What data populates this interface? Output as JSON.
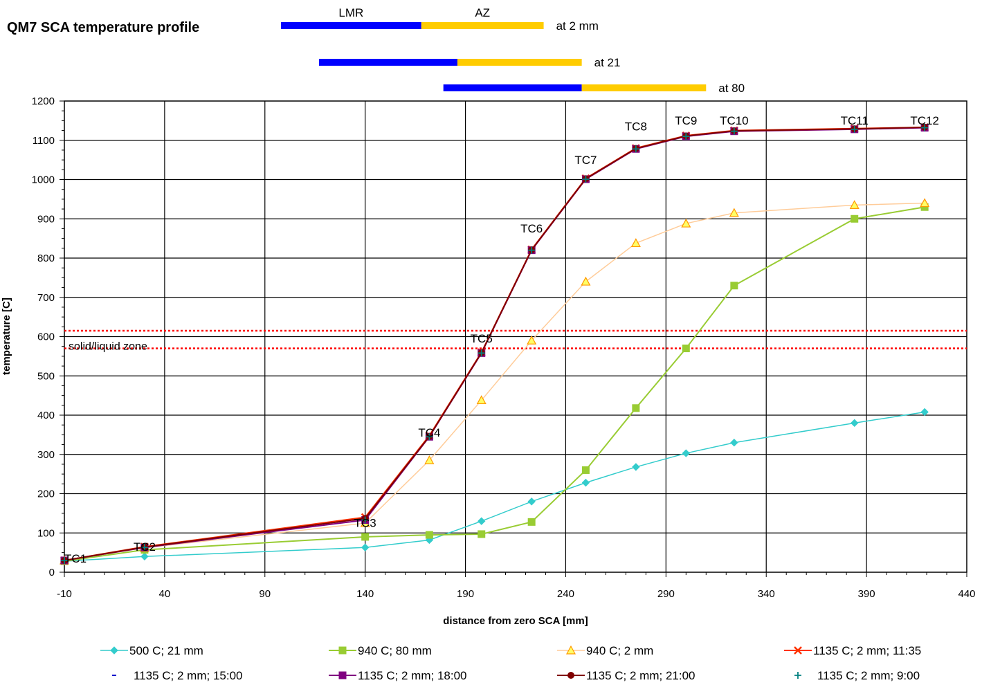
{
  "chart_data": {
    "type": "line",
    "title": "QM7 SCA temperature profile",
    "xlabel": "distance from zero SCA [mm]",
    "ylabel": "temperature [C]",
    "xlim": [
      -10,
      440
    ],
    "ylim": [
      0,
      1200
    ],
    "x_ticks": [
      -10,
      40,
      90,
      140,
      190,
      240,
      290,
      340,
      390,
      440
    ],
    "y_ticks": [
      0,
      100,
      200,
      300,
      400,
      500,
      600,
      700,
      800,
      900,
      1000,
      1100,
      1200
    ],
    "grid": true,
    "legend_position": "bottom",
    "zone_bars": {
      "lmr_label": "LMR",
      "az_label": "AZ",
      "lmr_color": "#0000ff",
      "az_color": "#ffcc00",
      "rows": [
        {
          "label": "at 2 mm",
          "lmr": [
            98,
            168
          ],
          "az": [
            168,
            229
          ]
        },
        {
          "label": "at 21",
          "lmr": [
            117,
            186
          ],
          "az": [
            186,
            248
          ]
        },
        {
          "label": "at 80",
          "lmr": [
            179,
            248
          ],
          "az": [
            248,
            310
          ]
        }
      ]
    },
    "zone_lines": {
      "label": "solid/liquid zone",
      "y": [
        570,
        615
      ],
      "color": "#ff0000"
    },
    "tc_labels": [
      {
        "text": "TC1",
        "x": -10,
        "y": 25
      },
      {
        "text": "TC2",
        "x": 30,
        "y": 55
      },
      {
        "text": "TC3",
        "x": 140,
        "y": 115
      },
      {
        "text": "TC4",
        "x": 172,
        "y": 345
      },
      {
        "text": "TC5",
        "x": 198,
        "y": 585
      },
      {
        "text": "TC6",
        "x": 223,
        "y": 865
      },
      {
        "text": "TC7",
        "x": 250,
        "y": 1040
      },
      {
        "text": "TC8",
        "x": 275,
        "y": 1125
      },
      {
        "text": "TC9",
        "x": 300,
        "y": 1140
      },
      {
        "text": "TC10",
        "x": 324,
        "y": 1140
      },
      {
        "text": "TC11",
        "x": 384,
        "y": 1140
      },
      {
        "text": "TC12",
        "x": 419,
        "y": 1140
      }
    ],
    "series": [
      {
        "name": "500 C; 21 mm",
        "color": "#33cccc",
        "marker": "diamond",
        "width": 1.5,
        "x": [
          -10,
          30,
          140,
          172,
          198,
          223,
          250,
          275,
          300,
          324,
          384,
          419
        ],
        "values": [
          28,
          40,
          63,
          82,
          130,
          180,
          228,
          268,
          303,
          330,
          380,
          408
        ]
      },
      {
        "name": "940 C; 80 mm",
        "color": "#99cc33",
        "marker": "square",
        "width": 2,
        "x": [
          -10,
          30,
          140,
          172,
          198,
          223,
          250,
          275,
          300,
          324,
          384,
          419
        ],
        "values": [
          28,
          57,
          90,
          95,
          97,
          128,
          260,
          418,
          570,
          730,
          900,
          930
        ]
      },
      {
        "name": "940 C; 2 mm",
        "color": "#ffcc99",
        "marker": "triangle",
        "width": 1.5,
        "x": [
          -10,
          30,
          140,
          172,
          198,
          223,
          250,
          275,
          300,
          324,
          384,
          419
        ],
        "values": [
          30,
          62,
          125,
          285,
          438,
          590,
          740,
          838,
          888,
          915,
          935,
          940
        ]
      },
      {
        "name": "1135 C; 2 mm; 11:35",
        "color": "#ff3300",
        "marker": "x",
        "width": 2,
        "x": [
          -10,
          30,
          140,
          172,
          198,
          223,
          250,
          275,
          300,
          324,
          384,
          419
        ],
        "values": [
          30,
          65,
          140,
          348,
          560,
          822,
          1003,
          1080,
          1112,
          1125,
          1130,
          1133
        ]
      },
      {
        "name": "1135 C; 2 mm; 15:00",
        "color": "#0000cc",
        "marker": "dash",
        "width": 0,
        "x": [
          -10,
          30,
          140,
          172,
          198,
          223,
          250,
          275,
          300,
          324,
          384,
          419
        ],
        "values": [
          30,
          63,
          133,
          345,
          558,
          820,
          1001,
          1078,
          1110,
          1123,
          1128,
          1132
        ]
      },
      {
        "name": "1135 C; 2 mm; 18:00",
        "color": "#800080",
        "marker": "square",
        "width": 2,
        "x": [
          -10,
          30,
          140,
          172,
          198,
          223,
          250,
          275,
          300,
          324,
          384,
          419
        ],
        "values": [
          30,
          63,
          133,
          345,
          558,
          820,
          1001,
          1078,
          1110,
          1123,
          1128,
          1132
        ]
      },
      {
        "name": "1135 C; 2 mm; 21:00",
        "color": "#800000",
        "marker": "circle",
        "width": 2,
        "x": [
          -10,
          30,
          140,
          172,
          198,
          223,
          250,
          275,
          300,
          324,
          384,
          419
        ],
        "values": [
          30,
          64,
          137,
          346,
          559,
          821,
          1002,
          1079,
          1111,
          1124,
          1129,
          1133
        ]
      },
      {
        "name": "1135 C; 2 mm; 9:00",
        "color": "#008080",
        "marker": "plus",
        "width": 0,
        "x": [
          -10,
          30,
          140,
          172,
          198,
          223,
          250,
          275,
          300,
          324,
          384,
          419
        ],
        "values": [
          30,
          63,
          133,
          345,
          558,
          820,
          1001,
          1078,
          1110,
          1123,
          1128,
          1132
        ]
      }
    ]
  }
}
